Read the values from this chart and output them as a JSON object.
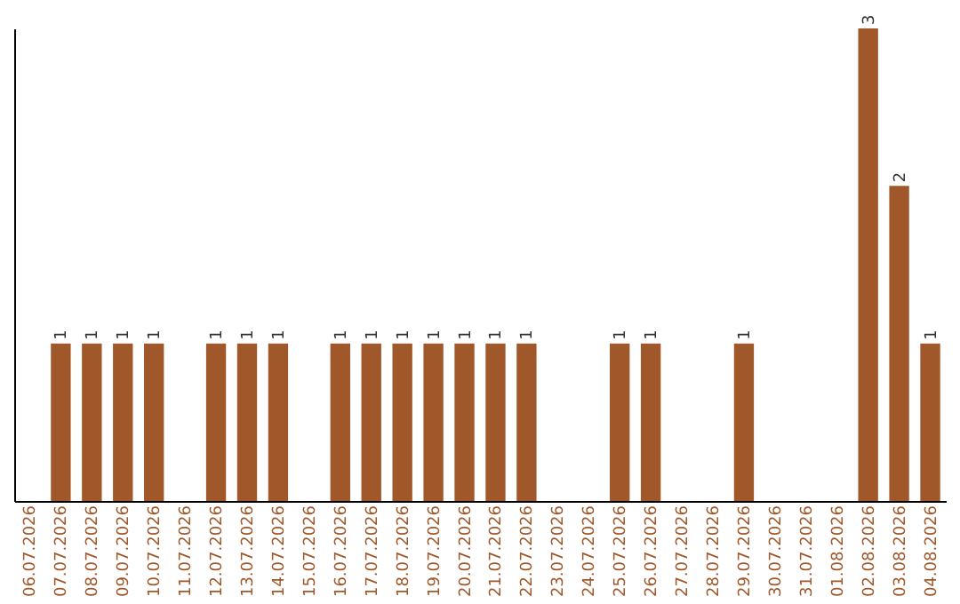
{
  "chart_data": {
    "type": "bar",
    "categories": [
      "06.07.2026",
      "07.07.2026",
      "08.07.2026",
      "09.07.2026",
      "10.07.2026",
      "11.07.2026",
      "12.07.2026",
      "13.07.2026",
      "14.07.2026",
      "15.07.2026",
      "16.07.2026",
      "17.07.2026",
      "18.07.2026",
      "19.07.2026",
      "20.07.2026",
      "21.07.2026",
      "22.07.2026",
      "23.07.2026",
      "24.07.2026",
      "25.07.2026",
      "26.07.2026",
      "27.07.2026",
      "28.07.2026",
      "29.07.2026",
      "30.07.2026",
      "31.07.2026",
      "01.08.2026",
      "02.08.2026",
      "03.08.2026",
      "04.08.2026"
    ],
    "values": [
      null,
      1,
      1,
      1,
      1,
      null,
      1,
      1,
      1,
      null,
      1,
      1,
      1,
      1,
      1,
      1,
      1,
      null,
      null,
      1,
      1,
      null,
      null,
      1,
      null,
      null,
      null,
      3,
      2,
      1
    ],
    "color": "#a0582a",
    "data_labels": true,
    "grid": false
  }
}
